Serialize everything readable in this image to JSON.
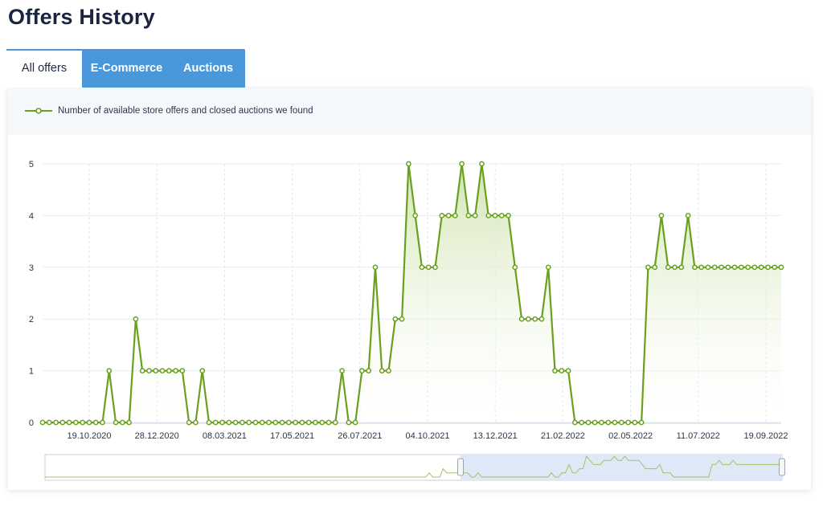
{
  "page": {
    "title": "Offers History"
  },
  "tabs": [
    {
      "label": "All offers",
      "active": true
    },
    {
      "label": "E-Commerce",
      "active": false
    },
    {
      "label": "Auctions",
      "active": false
    }
  ],
  "colors": {
    "line": "#69a01e",
    "marker_fill": "#ffffff",
    "area_top": "#cfe3ae",
    "tab_blue": "#4a98dc",
    "navigator_fill": "#dfe8f6",
    "navigator_border": "#c8d0dc"
  },
  "legend": {
    "label": "Number of available store offers and closed auctions we found",
    "icon": "line-marker-icon"
  },
  "chart_data": {
    "type": "line",
    "title": "",
    "xlabel": "",
    "ylabel": "",
    "ylim": [
      0,
      5
    ],
    "yticks": [
      "0",
      "1",
      "2",
      "3",
      "4",
      "5"
    ],
    "xticks": [
      "19.10.2020",
      "28.12.2020",
      "08.03.2021",
      "17.05.2021",
      "26.07.2021",
      "04.10.2021",
      "13.12.2021",
      "21.02.2022",
      "02.05.2022",
      "11.07.2022",
      "19.09.2022"
    ],
    "legend_position": "top-left",
    "grid": true,
    "series": [
      {
        "name": "Number of available store offers and closed auctions we found",
        "values": [
          0,
          0,
          0,
          0,
          0,
          0,
          0,
          0,
          0,
          0,
          1,
          0,
          0,
          0,
          2,
          1,
          1,
          1,
          1,
          1,
          1,
          1,
          0,
          0,
          1,
          0,
          0,
          0,
          0,
          0,
          0,
          0,
          0,
          0,
          0,
          0,
          0,
          0,
          0,
          0,
          0,
          0,
          0,
          0,
          0,
          1,
          0,
          0,
          1,
          1,
          3,
          1,
          1,
          2,
          2,
          5,
          4,
          3,
          3,
          3,
          4,
          4,
          4,
          5,
          4,
          4,
          5,
          4,
          4,
          4,
          4,
          3,
          2,
          2,
          2,
          2,
          3,
          1,
          1,
          1,
          0,
          0,
          0,
          0,
          0,
          0,
          0,
          0,
          0,
          0,
          0,
          3,
          3,
          4,
          3,
          3,
          3,
          4,
          3,
          3,
          3,
          3,
          3,
          3,
          3,
          3,
          3,
          3,
          3,
          3,
          3,
          3
        ]
      }
    ]
  }
}
